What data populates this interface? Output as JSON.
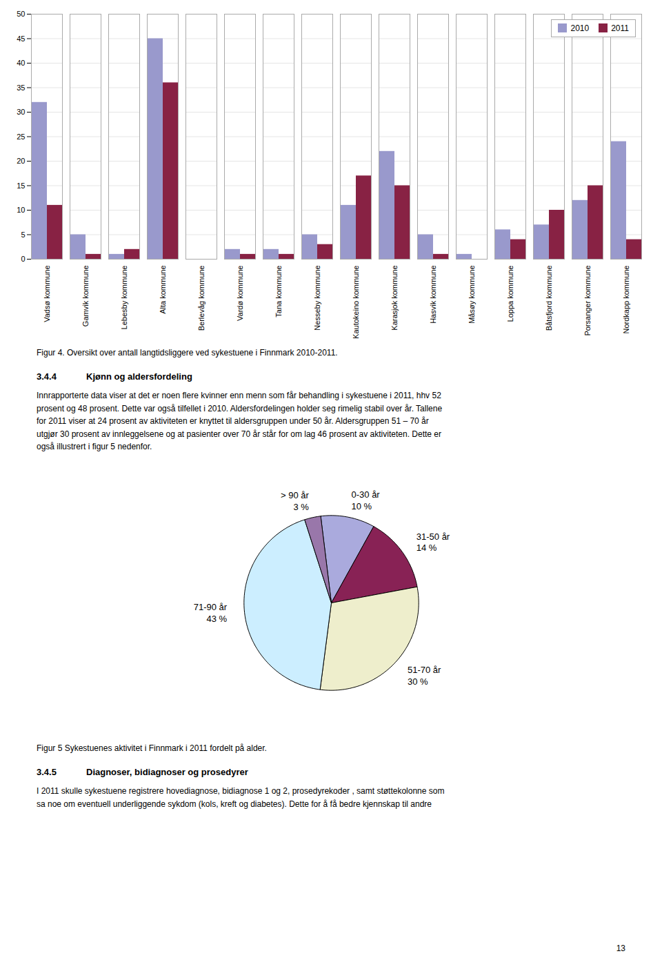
{
  "chart_data": [
    {
      "type": "bar",
      "categories": [
        "Vadsø kommune",
        "Gamvik kommune",
        "Lebesby kommune",
        "Alta kommune",
        "Berlevåg kommune",
        "Vardø kommune",
        "Tana kommune",
        "Nesseby kommune",
        "Kautokeino kommune",
        "Karasjok kommune",
        "Hasvik kommune",
        "Måsøy kommune",
        "Loppa kommune",
        "Båtsfjord kommune",
        "Porsanger kommune",
        "Nordkapp kommune"
      ],
      "series": [
        {
          "name": "2010",
          "color": "#9999cc",
          "values": [
            32,
            5,
            1,
            45,
            0,
            2,
            2,
            5,
            11,
            22,
            5,
            1,
            6,
            7,
            12,
            24
          ]
        },
        {
          "name": "2011",
          "color": "#882244",
          "values": [
            11,
            1,
            2,
            36,
            0,
            1,
            1,
            3,
            17,
            15,
            1,
            0,
            4,
            10,
            15,
            4
          ]
        }
      ],
      "ylim": [
        0,
        50
      ],
      "yticks": [
        0,
        5,
        10,
        15,
        20,
        25,
        30,
        35,
        40,
        45,
        50
      ],
      "grid": true,
      "legend": "upper right",
      "caption": "Figur 4. Oversikt over antall langtidsliggere ved sykestuene i Finnmark 2010-2011.",
      "annotations": [
        "3.4.4",
        "Kjønn og aldersfordeling",
        "Innrapporterte data viser at det er noen flere kvinner enn menn som får behandling i sykestuene i 2011, hhv 52\nprosent og 48 prosent. Dette var også tilfellet i 2010. Aldersfordelingen holder seg rimelig stabil over år. Tallene\nfor 2011 viser at 24 prosent av aktiviteten er knyttet til aldersgruppen under 50 år. Aldersgruppen 51 – 70 år\nutgjør 30 prosent av innleggelsene og at pasienter over 70 år står for om lag 46 prosent av aktiviteten. Dette er\nogså illustrert i figur 5 nedenfor."
      ]
    },
    {
      "type": "pie",
      "categories": [
        "0-30 år",
        "31-50 år",
        "51-70 år",
        "71-90 år",
        "> 90 år"
      ],
      "values": [
        10,
        14,
        30,
        43,
        3
      ],
      "value_labels": [
        "10 %",
        "14 %",
        "30 %",
        "43 %",
        "3 %"
      ],
      "colors": [
        "#aaaadd",
        "#882255",
        "#eeeecc",
        "#cceeff",
        "#9977aa"
      ],
      "data_labels": true,
      "caption": "Figur 5 Sykestuenes aktivitet i Finnmark i 2011 fordelt på alder.",
      "annotations": [
        "3.4.5",
        "Diagnoser, bidiagnoser og prosedyrer",
        "I 2011 skulle sykestuene registrere hovediagnose, bidiagnose 1 og 2, prosedyrekoder , samt støttekolonne som\nsa noe om eventuell underliggende sykdom (kols, kreft og diabetes). Dette for å få bedre kjennskap til andre",
        "13"
      ]
    }
  ]
}
